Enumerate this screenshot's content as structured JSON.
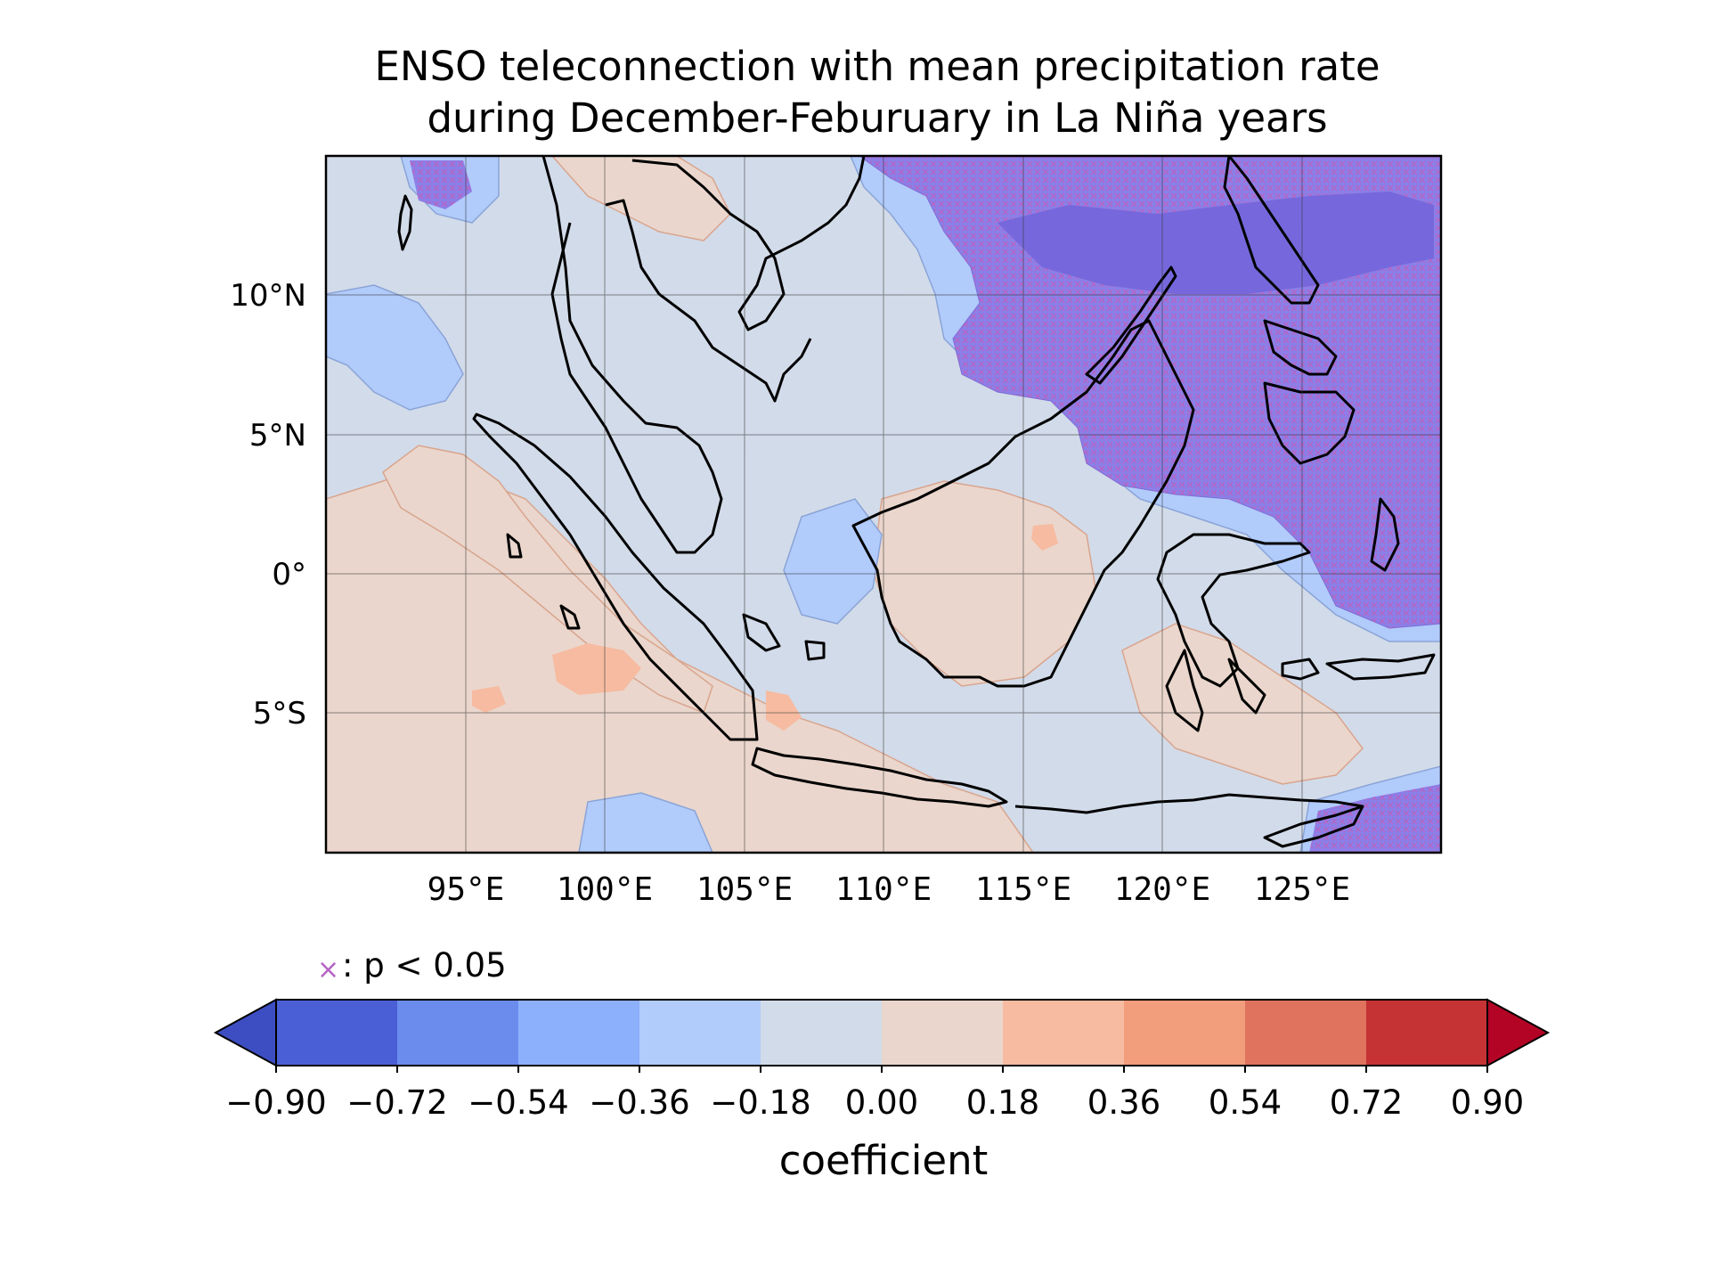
{
  "title": {
    "line1": "ENSO teleconnection with mean precipitation rate",
    "line2": "during December-Feburuary in La Niña years"
  },
  "map": {
    "lon_range": [
      90,
      130
    ],
    "lat_range": [
      -10,
      15
    ],
    "lat_ticks": [
      {
        "value": 10,
        "label": "10°N"
      },
      {
        "value": 5,
        "label": "5°N"
      },
      {
        "value": 0,
        "label": "0°"
      },
      {
        "value": -5,
        "label": "5°S"
      }
    ],
    "lon_ticks": [
      {
        "value": 95,
        "label": "95°E"
      },
      {
        "value": 100,
        "label": "100°E"
      },
      {
        "value": 105,
        "label": "105°E"
      },
      {
        "value": 110,
        "label": "110°E"
      },
      {
        "value": 115,
        "label": "115°E"
      },
      {
        "value": 120,
        "label": "120°E"
      },
      {
        "value": 125,
        "label": "125°E"
      }
    ],
    "gridlines": true,
    "hatch_color": "#b565c4"
  },
  "significance": {
    "marker": "×",
    "text": ": p < 0.05"
  },
  "colorbar": {
    "label": "coefficient",
    "extend": "both",
    "ticks": [
      "−0.90",
      "−0.72",
      "−0.54",
      "−0.36",
      "−0.18",
      "0.00",
      "0.18",
      "0.36",
      "0.54",
      "0.72",
      "0.90"
    ],
    "colors": [
      "#4a5fd6",
      "#6b8ced",
      "#8db0fc",
      "#b1cbfb",
      "#d2dbe9",
      "#ead6cc",
      "#f6bba0",
      "#f29d7c",
      "#e0735e",
      "#c53334"
    ],
    "under_color": "#3d4ec2",
    "over_color": "#b40426"
  },
  "chart_data": {
    "type": "heatmap",
    "title": "ENSO teleconnection with mean precipitation rate during December-Feburuary in La Niña years",
    "xlabel": "",
    "ylabel": "",
    "colorbar_label": "coefficient",
    "x_range": [
      90,
      130
    ],
    "y_range": [
      -10,
      15
    ],
    "levels": [
      -0.9,
      -0.72,
      -0.54,
      -0.36,
      -0.18,
      0.0,
      0.18,
      0.36,
      0.54,
      0.72,
      0.9
    ],
    "regions": [
      {
        "lon": [
          90,
          130
        ],
        "lat": [
          -10,
          15
        ],
        "value": -0.1
      },
      {
        "lon": [
          90,
          105
        ],
        "lat": [
          -10,
          3
        ],
        "value": 0.1
      },
      {
        "lon": [
          110,
          116
        ],
        "lat": [
          -4,
          2
        ],
        "value": 0.08
      },
      {
        "lon": [
          119,
          127
        ],
        "lat": [
          -8,
          -2
        ],
        "value": 0.1
      },
      {
        "lon": [
          95,
          104
        ],
        "lat": [
          -4.5,
          -3
        ],
        "value": 0.3
      },
      {
        "lon": [
          105,
          107
        ],
        "lat": [
          -6,
          -5
        ],
        "value": 0.3
      },
      {
        "lon": [
          90,
          100
        ],
        "lat": [
          5,
          11
        ],
        "value": -0.3
      },
      {
        "lon": [
          111,
          130
        ],
        "lat": [
          2,
          15
        ],
        "value": -0.38
      },
      {
        "lon": [
          117,
          130
        ],
        "lat": [
          9,
          15
        ],
        "value": -0.55
      },
      {
        "lon": [
          124,
          130
        ],
        "lat": [
          -2,
          3
        ],
        "value": -0.45
      },
      {
        "lon": [
          122,
          130
        ],
        "lat": [
          -10,
          -8
        ],
        "value": -0.45
      }
    ]
  }
}
